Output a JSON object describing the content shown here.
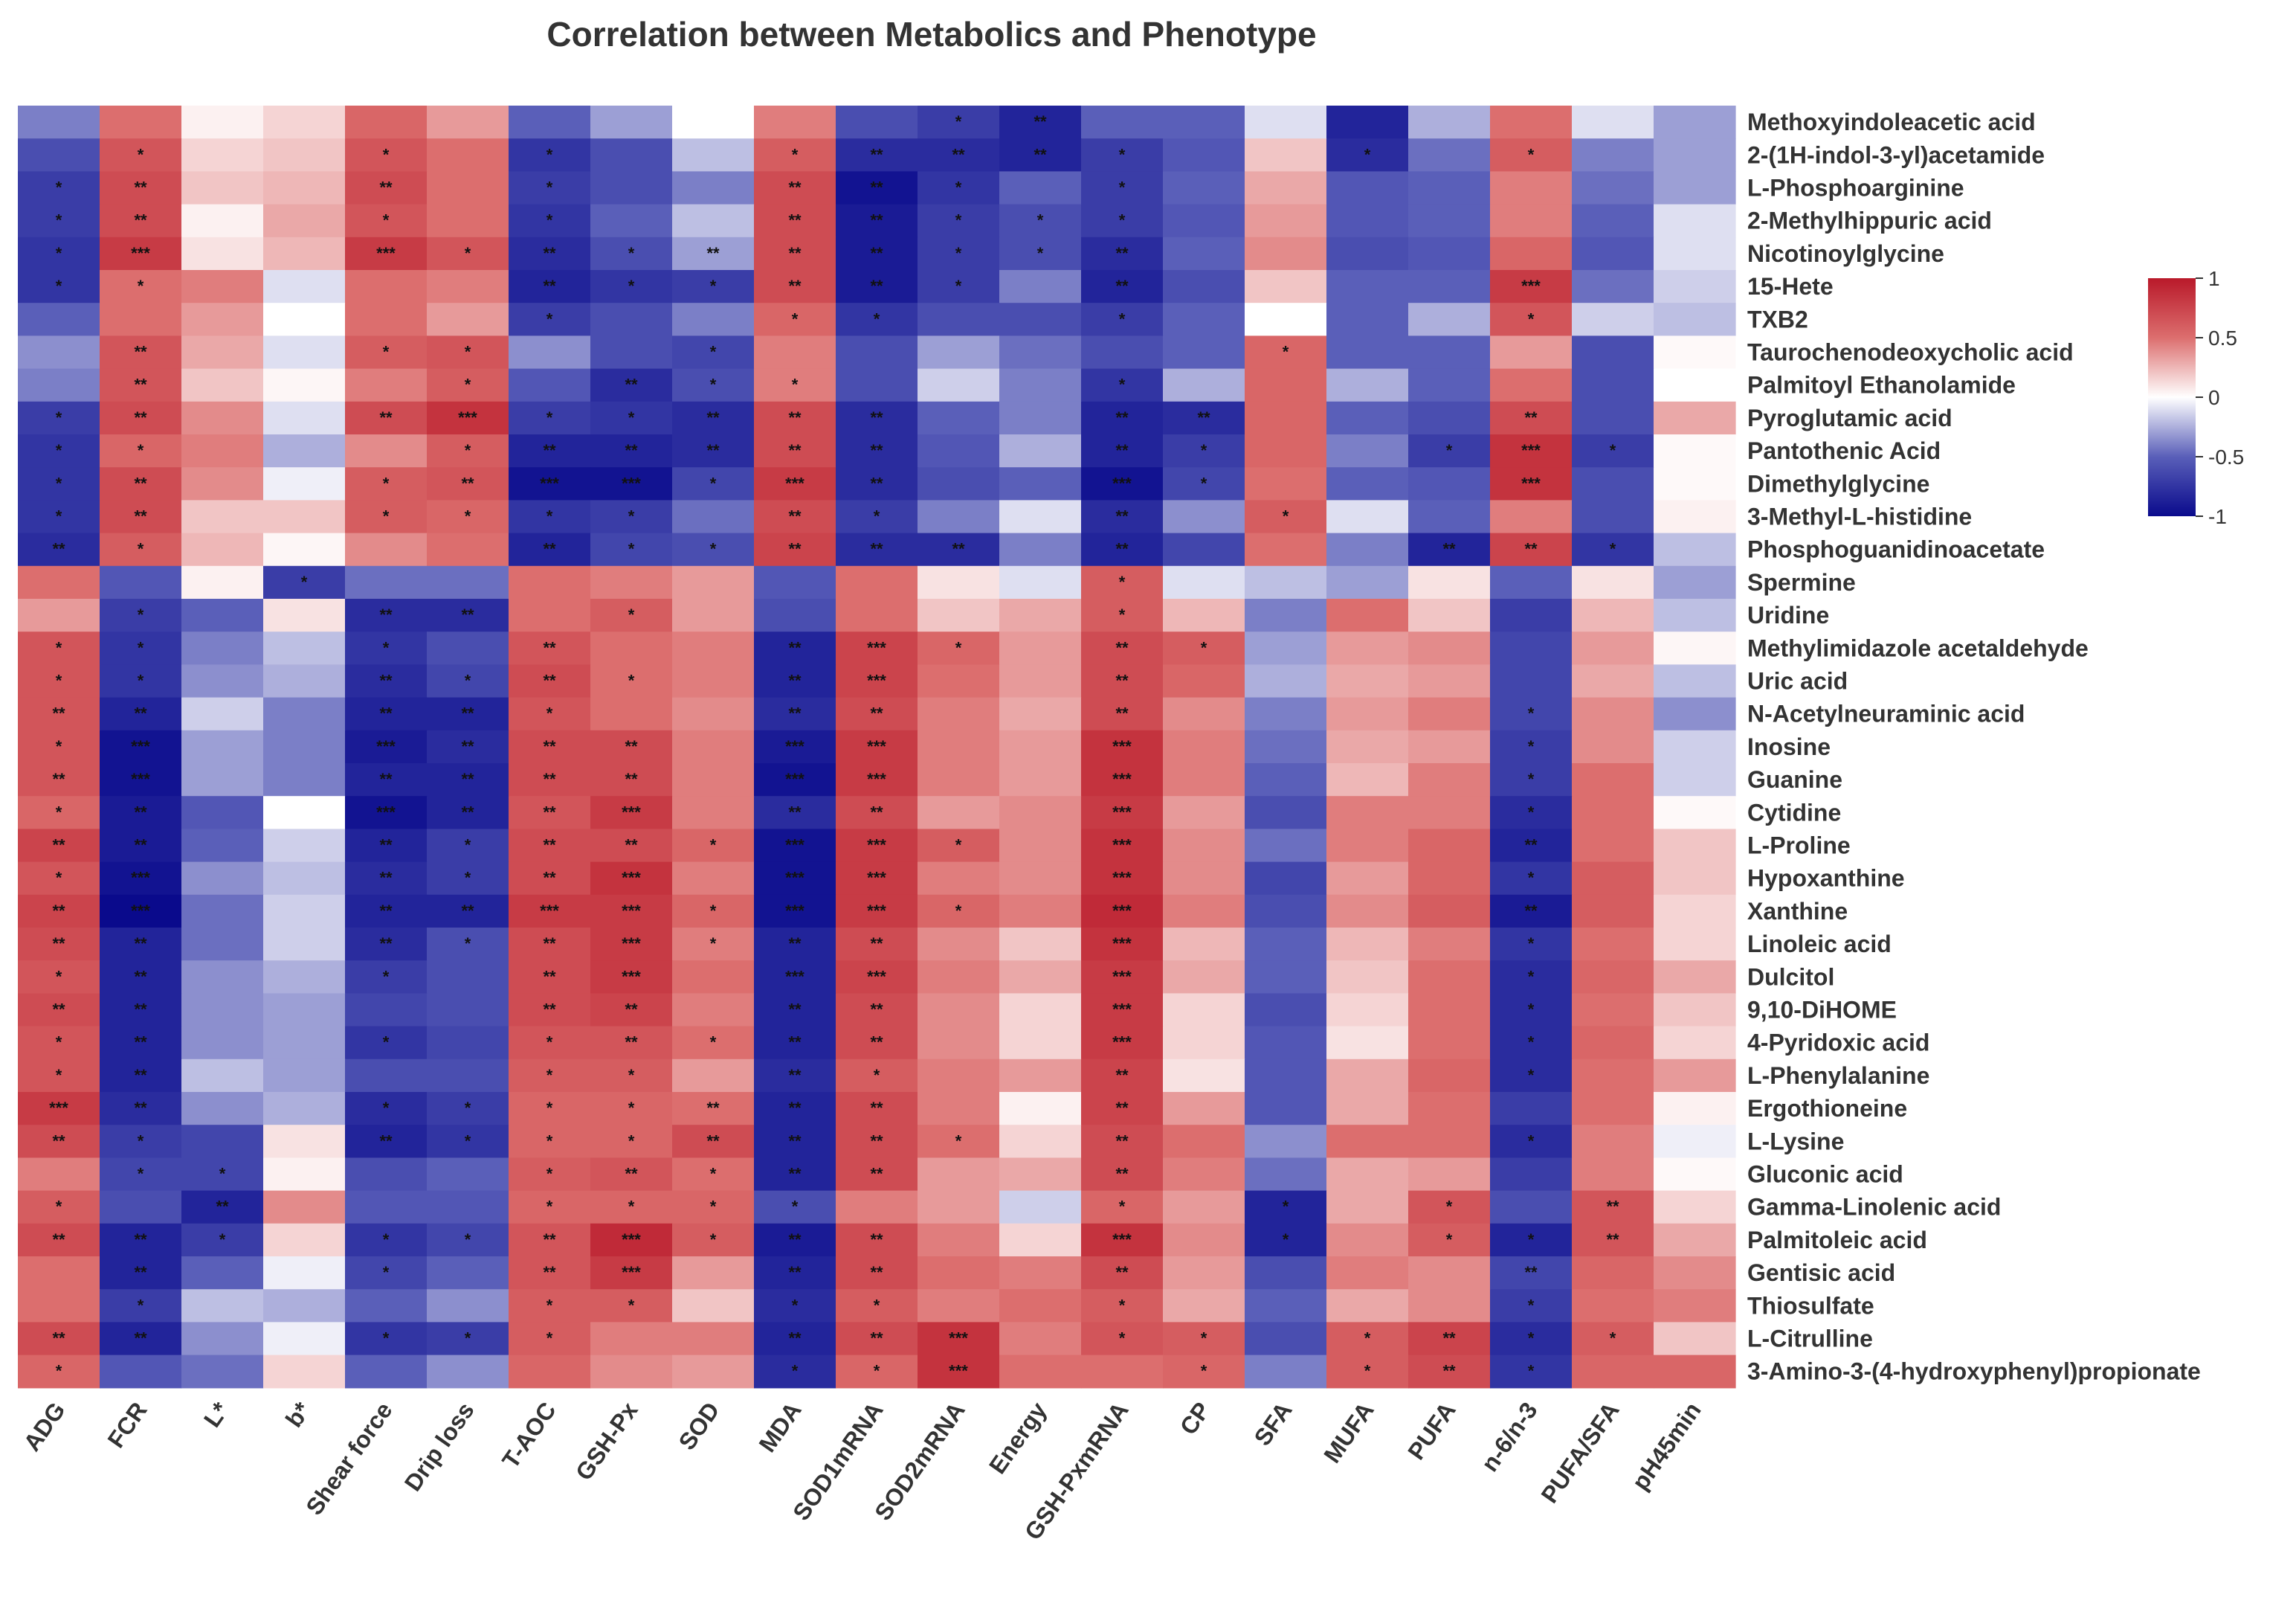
{
  "chart_data": {
    "type": "heatmap",
    "title": "Correlation between Metabolics and Phenotype",
    "columns": [
      "ADG",
      "FCR",
      "L*",
      "b*",
      "Shear force",
      "Drip loss",
      "T-AOC",
      "GSH-Px",
      "SOD",
      "MDA",
      "SOD1mRNA",
      "SOD2mRNA",
      "Energy",
      "GSH-PxmRNA",
      "CP",
      "SFA",
      "MUFA",
      "PUFA",
      "n-6/n-3",
      "PUFA/SFA",
      "pH45min"
    ],
    "rows": [
      "Methoxyindoleacetic acid",
      "2-(1H-indol-3-yl)acetamide",
      "L-Phosphoarginine",
      "2-Methylhippuric acid",
      "Nicotinoylglycine",
      "15-Hete",
      "TXB2",
      "Taurochenodeoxycholic acid",
      "Palmitoyl Ethanolamide",
      "Pyroglutamic acid",
      "Pantothenic Acid",
      "Dimethylglycine",
      "3-Methyl-L-histidine",
      "Phosphoguanidinoacetate",
      "Spermine",
      "Uridine",
      "Methylimidazole acetaldehyde",
      "Uric acid",
      "N-Acetylneuraminic acid",
      "Inosine",
      "Guanine",
      "Cytidine",
      "L-Proline",
      "Hypoxanthine",
      "Xanthine",
      "Linoleic acid",
      "Dulcitol",
      "9,10-DiHOME",
      "4-Pyridoxic acid",
      "L-Phenylalanine",
      "Ergothioneine",
      "L-Lysine",
      "Gluconic acid",
      "Gamma-Linolenic acid",
      "Palmitoleic acid",
      "Gentisic acid",
      "Thiosulfate",
      "L-Citrulline",
      "3-Amino-3-(4-hydroxyphenyl)propionate"
    ],
    "values": [
      [
        -0.4,
        0.5,
        0.05,
        0.15,
        0.55,
        0.35,
        -0.5,
        -0.3,
        0.0,
        0.45,
        -0.6,
        -0.7,
        -0.85,
        -0.5,
        -0.5,
        -0.1,
        -0.85,
        -0.25,
        0.5,
        -0.1,
        -0.3
      ],
      [
        -0.6,
        0.65,
        0.15,
        0.2,
        0.65,
        0.5,
        -0.75,
        -0.6,
        -0.2,
        0.6,
        -0.8,
        -0.8,
        -0.85,
        -0.7,
        -0.55,
        0.2,
        -0.8,
        -0.45,
        0.6,
        -0.4,
        -0.3
      ],
      [
        -0.7,
        0.7,
        0.2,
        0.25,
        0.7,
        0.5,
        -0.7,
        -0.6,
        -0.4,
        0.7,
        -0.95,
        -0.75,
        -0.5,
        -0.7,
        -0.5,
        0.3,
        -0.55,
        -0.5,
        0.45,
        -0.45,
        -0.3
      ],
      [
        -0.7,
        0.7,
        0.05,
        0.3,
        0.65,
        0.5,
        -0.75,
        -0.5,
        -0.2,
        0.7,
        -0.9,
        -0.7,
        -0.6,
        -0.7,
        -0.55,
        0.35,
        -0.55,
        -0.5,
        0.45,
        -0.5,
        -0.1
      ],
      [
        -0.75,
        0.8,
        0.1,
        0.25,
        0.8,
        0.65,
        -0.8,
        -0.6,
        -0.3,
        0.7,
        -0.9,
        -0.7,
        -0.6,
        -0.8,
        -0.5,
        0.4,
        -0.6,
        -0.55,
        0.55,
        -0.55,
        -0.1
      ],
      [
        -0.75,
        0.5,
        0.45,
        -0.1,
        0.5,
        0.45,
        -0.85,
        -0.75,
        -0.7,
        0.7,
        -0.9,
        -0.7,
        -0.4,
        -0.85,
        -0.6,
        0.2,
        -0.5,
        -0.5,
        0.8,
        -0.45,
        -0.15
      ],
      [
        -0.5,
        0.5,
        0.35,
        0.0,
        0.5,
        0.35,
        -0.7,
        -0.6,
        -0.4,
        0.55,
        -0.75,
        -0.6,
        -0.6,
        -0.7,
        -0.5,
        0.0,
        -0.5,
        -0.25,
        0.65,
        -0.15,
        -0.2
      ],
      [
        -0.35,
        0.65,
        0.3,
        -0.1,
        0.6,
        0.65,
        -0.35,
        -0.6,
        -0.65,
        0.45,
        -0.6,
        -0.3,
        -0.45,
        -0.6,
        -0.5,
        0.55,
        -0.5,
        -0.5,
        0.35,
        -0.6,
        0.02
      ],
      [
        -0.4,
        0.65,
        0.2,
        0.03,
        0.45,
        0.6,
        -0.55,
        -0.8,
        -0.6,
        0.45,
        -0.6,
        -0.15,
        -0.4,
        -0.75,
        -0.25,
        0.55,
        -0.25,
        -0.5,
        0.5,
        -0.6,
        0.0
      ],
      [
        -0.7,
        0.7,
        0.4,
        -0.1,
        0.7,
        0.85,
        -0.7,
        -0.75,
        -0.8,
        0.7,
        -0.8,
        -0.5,
        -0.4,
        -0.85,
        -0.8,
        0.55,
        -0.5,
        -0.6,
        0.7,
        -0.6,
        0.3
      ],
      [
        -0.75,
        0.55,
        0.45,
        -0.25,
        0.4,
        0.6,
        -0.85,
        -0.85,
        -0.8,
        0.7,
        -0.8,
        -0.55,
        -0.25,
        -0.85,
        -0.7,
        0.55,
        -0.4,
        -0.7,
        0.85,
        -0.7,
        0.02
      ],
      [
        -0.75,
        0.7,
        0.4,
        -0.05,
        0.6,
        0.65,
        -0.95,
        -0.95,
        -0.65,
        0.8,
        -0.8,
        -0.6,
        -0.5,
        -0.95,
        -0.65,
        0.5,
        -0.5,
        -0.55,
        0.85,
        -0.6,
        0.02
      ],
      [
        -0.75,
        0.7,
        0.2,
        0.2,
        0.6,
        0.55,
        -0.75,
        -0.7,
        -0.45,
        0.7,
        -0.7,
        -0.4,
        -0.1,
        -0.8,
        -0.35,
        0.6,
        -0.1,
        -0.5,
        0.45,
        -0.6,
        0.05
      ],
      [
        -0.8,
        0.6,
        0.25,
        0.03,
        0.4,
        0.5,
        -0.85,
        -0.65,
        -0.6,
        0.75,
        -0.8,
        -0.8,
        -0.4,
        -0.85,
        -0.65,
        0.5,
        -0.4,
        -0.85,
        0.75,
        -0.75,
        -0.2
      ],
      [
        0.5,
        -0.55,
        0.05,
        -0.7,
        -0.45,
        -0.45,
        0.5,
        0.45,
        0.35,
        -0.55,
        0.5,
        0.1,
        -0.1,
        0.6,
        -0.1,
        -0.2,
        -0.3,
        0.1,
        -0.5,
        0.1,
        -0.3
      ],
      [
        0.35,
        -0.7,
        -0.5,
        0.1,
        -0.8,
        -0.8,
        0.5,
        0.6,
        0.35,
        -0.6,
        0.5,
        0.2,
        0.3,
        0.6,
        0.25,
        -0.4,
        0.5,
        0.2,
        -0.7,
        0.25,
        -0.2
      ],
      [
        0.65,
        -0.75,
        -0.4,
        -0.2,
        -0.75,
        -0.6,
        0.65,
        0.5,
        0.45,
        -0.85,
        0.75,
        0.55,
        0.35,
        0.7,
        0.6,
        -0.3,
        0.35,
        0.4,
        -0.65,
        0.35,
        0.03
      ],
      [
        0.65,
        -0.75,
        -0.35,
        -0.25,
        -0.8,
        -0.65,
        0.7,
        0.5,
        0.45,
        -0.85,
        0.75,
        0.5,
        0.35,
        0.7,
        0.55,
        -0.25,
        0.3,
        0.35,
        -0.65,
        0.3,
        -0.2
      ],
      [
        0.65,
        -0.85,
        -0.15,
        -0.4,
        -0.85,
        -0.85,
        0.65,
        0.5,
        0.4,
        -0.8,
        0.7,
        0.45,
        0.3,
        0.7,
        0.4,
        -0.4,
        0.35,
        0.45,
        -0.65,
        0.4,
        -0.35
      ],
      [
        0.65,
        -0.95,
        -0.3,
        -0.4,
        -0.9,
        -0.8,
        0.7,
        0.7,
        0.45,
        -0.9,
        0.8,
        0.45,
        0.35,
        0.85,
        0.45,
        -0.45,
        0.3,
        0.35,
        -0.7,
        0.4,
        -0.15
      ],
      [
        0.65,
        -0.95,
        -0.3,
        -0.4,
        -0.85,
        -0.85,
        0.7,
        0.7,
        0.45,
        -0.95,
        0.8,
        0.45,
        0.35,
        0.85,
        0.45,
        -0.5,
        0.25,
        0.45,
        -0.7,
        0.5,
        -0.15
      ],
      [
        0.55,
        -0.9,
        -0.55,
        0.0,
        -0.95,
        -0.85,
        0.65,
        0.8,
        0.45,
        -0.8,
        0.7,
        0.35,
        0.4,
        0.8,
        0.35,
        -0.6,
        0.45,
        0.45,
        -0.8,
        0.5,
        0.02
      ],
      [
        0.75,
        -0.9,
        -0.5,
        -0.15,
        -0.85,
        -0.7,
        0.7,
        0.7,
        0.55,
        -0.95,
        0.8,
        0.6,
        0.4,
        0.85,
        0.4,
        -0.45,
        0.45,
        0.55,
        -0.85,
        0.5,
        0.2
      ],
      [
        0.65,
        -0.95,
        -0.35,
        -0.2,
        -0.8,
        -0.7,
        0.7,
        0.85,
        0.45,
        -0.95,
        0.8,
        0.45,
        0.4,
        0.85,
        0.4,
        -0.65,
        0.35,
        0.55,
        -0.75,
        0.6,
        0.2
      ],
      [
        0.75,
        -1.0,
        -0.45,
        -0.15,
        -0.85,
        -0.85,
        0.8,
        0.8,
        0.55,
        -0.95,
        0.8,
        0.55,
        0.45,
        0.9,
        0.45,
        -0.6,
        0.4,
        0.6,
        -0.9,
        0.6,
        0.15
      ],
      [
        0.7,
        -0.85,
        -0.45,
        -0.15,
        -0.8,
        -0.6,
        0.7,
        0.8,
        0.45,
        -0.85,
        0.7,
        0.4,
        0.2,
        0.85,
        0.25,
        -0.5,
        0.25,
        0.45,
        -0.75,
        0.5,
        0.15
      ],
      [
        0.65,
        -0.85,
        -0.35,
        -0.25,
        -0.7,
        -0.6,
        0.7,
        0.8,
        0.5,
        -0.85,
        0.75,
        0.45,
        0.3,
        0.8,
        0.3,
        -0.5,
        0.2,
        0.5,
        -0.8,
        0.55,
        0.3
      ],
      [
        0.7,
        -0.85,
        -0.35,
        -0.3,
        -0.65,
        -0.6,
        0.7,
        0.75,
        0.45,
        -0.85,
        0.7,
        0.4,
        0.15,
        0.8,
        0.15,
        -0.6,
        0.15,
        0.5,
        -0.8,
        0.5,
        0.2
      ],
      [
        0.65,
        -0.85,
        -0.35,
        -0.3,
        -0.75,
        -0.65,
        0.65,
        0.65,
        0.5,
        -0.85,
        0.7,
        0.4,
        0.15,
        0.8,
        0.15,
        -0.55,
        0.1,
        0.5,
        -0.8,
        0.55,
        0.15
      ],
      [
        0.65,
        -0.85,
        -0.2,
        -0.3,
        -0.6,
        -0.6,
        0.6,
        0.6,
        0.35,
        -0.8,
        0.6,
        0.45,
        0.35,
        0.75,
        0.1,
        -0.55,
        0.3,
        0.55,
        -0.8,
        0.5,
        0.35
      ],
      [
        0.8,
        -0.8,
        -0.35,
        -0.25,
        -0.8,
        -0.7,
        0.55,
        0.55,
        0.5,
        -0.85,
        0.7,
        0.45,
        0.05,
        0.75,
        0.35,
        -0.55,
        0.3,
        0.5,
        -0.7,
        0.5,
        0.05
      ],
      [
        0.7,
        -0.7,
        -0.65,
        0.1,
        -0.85,
        -0.75,
        0.55,
        0.55,
        0.7,
        -0.85,
        0.7,
        0.5,
        0.15,
        0.7,
        0.5,
        -0.35,
        0.5,
        0.5,
        -0.8,
        0.45,
        -0.05
      ],
      [
        0.45,
        -0.65,
        -0.65,
        0.05,
        -0.6,
        -0.5,
        0.6,
        0.65,
        0.5,
        -0.85,
        0.7,
        0.35,
        0.3,
        0.7,
        0.45,
        -0.45,
        0.3,
        0.35,
        -0.7,
        0.45,
        0.02
      ],
      [
        0.6,
        -0.6,
        -0.85,
        0.4,
        -0.55,
        -0.55,
        0.55,
        0.55,
        0.55,
        -0.6,
        0.45,
        0.35,
        -0.15,
        0.55,
        0.35,
        -0.85,
        0.3,
        0.65,
        -0.6,
        0.65,
        0.15
      ],
      [
        0.7,
        -0.85,
        -0.7,
        0.15,
        -0.75,
        -0.65,
        0.65,
        0.9,
        0.6,
        -0.9,
        0.7,
        0.45,
        0.15,
        0.85,
        0.4,
        -0.85,
        0.4,
        0.6,
        -0.85,
        0.65,
        0.3
      ],
      [
        0.5,
        -0.85,
        -0.5,
        -0.05,
        -0.65,
        -0.5,
        0.65,
        0.8,
        0.35,
        -0.85,
        0.7,
        0.5,
        0.45,
        0.7,
        0.35,
        -0.6,
        0.45,
        0.4,
        -0.65,
        0.55,
        0.4
      ],
      [
        0.5,
        -0.7,
        -0.2,
        -0.25,
        -0.5,
        -0.35,
        0.6,
        0.6,
        0.2,
        -0.8,
        0.6,
        0.45,
        0.5,
        0.6,
        0.3,
        -0.5,
        0.3,
        0.4,
        -0.7,
        0.5,
        0.45
      ],
      [
        0.7,
        -0.85,
        -0.35,
        -0.05,
        -0.75,
        -0.7,
        0.6,
        0.45,
        0.45,
        -0.85,
        0.7,
        0.85,
        0.45,
        0.65,
        0.6,
        -0.6,
        0.6,
        0.75,
        -0.8,
        0.6,
        0.2
      ],
      [
        0.55,
        -0.55,
        -0.45,
        0.15,
        -0.5,
        -0.35,
        0.55,
        0.4,
        0.35,
        -0.8,
        0.55,
        0.85,
        0.5,
        0.5,
        0.55,
        -0.4,
        0.6,
        0.7,
        -0.75,
        0.55,
        0.55
      ]
    ],
    "significance": [
      "000000000001200000000",
      "010010100122210010100",
      "120020100221010000000",
      "120010100221110000000",
      "130031212221120000000",
      "110000211221020000300",
      "000000100110010000100",
      "020011001000000100000",
      "020001021100010000000",
      "120023112220022000200",
      "110001222220021001310",
      "120012331320031000300",
      "120011110210020100000",
      "210000211222020002210",
      "000100000000010000000",
      "010022010000010000000",
      "110010200231021000000",
      "110021210230020000000",
      "220022100220020000100",
      "130032220330030000100",
      "230022220330030000100",
      "120032230220030000100",
      "220021221331030000200",
      "130021230330030000100",
      "230022331331030000200",
      "220021231220030000100",
      "120010230330030000100",
      "220000220220030000100",
      "120010121220030000100",
      "120000110210020000100",
      "320011112220020000000",
      "210021112221020000100",
      "011000121220020000000",
      "102000111100010101020",
      "221011231220030101120",
      "020010230220020000200",
      "010000110110010000100",
      "220011100223011012110",
      "100000000113001012100"
    ],
    "colorbar": {
      "min": -1,
      "max": 1,
      "ticks": [
        "1",
        "0.5",
        "0",
        "-0.5",
        "-1"
      ],
      "tick_values": [
        1,
        0.5,
        0,
        -0.5,
        -1
      ]
    },
    "colors": {
      "low": "#0a0a8c",
      "mid_low": "#5a5fb9",
      "zero": "#ffffff",
      "mid_high": "#dc6e6e",
      "high": "#b9192a"
    }
  }
}
